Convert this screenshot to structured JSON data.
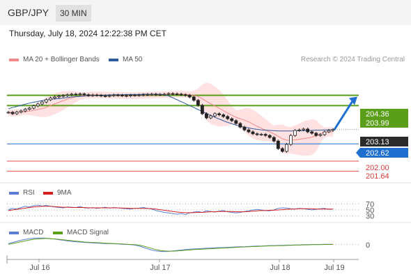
{
  "header": {
    "pair": "GBP/JPY",
    "timeframe": "30 MIN",
    "datetime": "Thursday, July 18, 2024 12:22:38 PM CET"
  },
  "legend": {
    "bb_label": "MA 20 + Bollinger Bands",
    "ma50_label": "MA 50",
    "credit": "Research © 2024 Trading Central"
  },
  "rsi_legend": {
    "rsi": "RSI",
    "ma9": "9MA"
  },
  "macd_legend": {
    "macd": "MACD",
    "signal": "MACD Signal"
  },
  "colors": {
    "up": "#5b9bd5",
    "green": "#5a9e1a",
    "red": "#e84c4c",
    "blue": "#1f6fd1",
    "dark": "#2b2b2b",
    "ma50": "#2e5b9e",
    "ma20": "#f08a8a",
    "bands": "#ffdcdc"
  },
  "chart_data": [
    {
      "type": "candlestick",
      "panel": "price",
      "x_labels": [
        "Jul 16",
        "Jul 17",
        "Jul 18",
        "Jul 19"
      ],
      "ylim": [
        201.4,
        205.4
      ],
      "levels": [
        {
          "label": "204.36",
          "value": 204.36,
          "color": "green"
        },
        {
          "label": "203.99",
          "value": 203.99,
          "color": "green"
        },
        {
          "label": "203.13",
          "value": 203.13,
          "color": "dark"
        },
        {
          "label": "202.62",
          "value": 202.62,
          "color": "blue"
        },
        {
          "label": "202.00",
          "value": 202.0,
          "color": "red"
        },
        {
          "label": "201.64",
          "value": 201.64,
          "color": "red"
        }
      ],
      "series_close": [
        203.75,
        203.7,
        203.76,
        203.8,
        203.86,
        203.9,
        203.98,
        204.05,
        204.12,
        204.2,
        204.26,
        204.3,
        204.33,
        204.35,
        204.38,
        204.4,
        204.39,
        204.41,
        204.38,
        204.35,
        204.37,
        204.36,
        204.34,
        204.33,
        204.35,
        204.37,
        204.36,
        204.35,
        204.34,
        204.36,
        204.36,
        204.37,
        204.38,
        204.39,
        204.4,
        204.38,
        204.39,
        204.4,
        204.42,
        204.41,
        204.4,
        204.38,
        204.36,
        204.3,
        204.18,
        204.0,
        203.7,
        203.55,
        203.62,
        203.7,
        203.66,
        203.6,
        203.52,
        203.45,
        203.35,
        203.22,
        203.12,
        203.05,
        202.98,
        202.95,
        202.96,
        202.92,
        202.85,
        202.72,
        202.45,
        202.35,
        202.6,
        202.92,
        203.1,
        203.12,
        203.15,
        203.05,
        203.0,
        202.92,
        202.95,
        203.05,
        203.1,
        203.13
      ],
      "ma50": [
        203.88,
        203.92,
        203.96,
        204.0,
        204.04,
        204.08,
        204.11,
        204.14,
        204.17,
        204.19,
        204.21,
        204.23,
        204.24,
        204.26,
        204.28,
        204.3,
        204.31,
        204.32,
        204.33,
        204.34,
        204.35,
        204.36,
        204.36,
        204.37,
        204.37,
        204.38,
        204.38,
        204.38,
        204.39,
        204.39,
        204.39,
        204.39,
        204.4,
        204.4,
        204.4,
        204.4,
        204.4,
        204.38,
        204.34,
        204.27,
        204.2,
        204.13,
        204.06,
        203.99,
        203.92,
        203.85,
        203.78,
        203.71,
        203.64,
        203.57,
        203.51,
        203.45,
        203.39,
        203.34,
        203.29,
        203.25,
        203.22,
        203.19,
        203.16,
        203.14,
        203.12,
        203.11,
        203.1,
        203.09,
        203.08,
        203.08,
        203.08,
        203.08,
        203.08,
        203.09,
        203.09,
        203.1,
        203.1,
        203.11,
        203.11,
        203.12,
        203.12,
        203.13
      ]
    },
    {
      "type": "line",
      "panel": "rsi",
      "ylim": [
        20,
        80
      ],
      "levels": [
        {
          "label": "70",
          "value": 70
        },
        {
          "label": "50",
          "value": 50
        },
        {
          "label": "30",
          "value": 30
        }
      ],
      "series": [
        {
          "name": "RSI",
          "values": [
            50,
            55,
            53,
            58,
            62,
            60,
            64,
            66,
            63,
            65,
            62,
            60,
            58,
            57,
            60,
            59,
            58,
            61,
            57,
            56,
            58,
            55,
            57,
            59,
            56,
            58,
            57,
            55,
            54,
            53,
            55,
            56,
            58,
            55,
            53,
            48,
            45,
            42,
            40,
            38,
            36,
            38,
            35,
            40,
            43,
            45,
            42,
            47,
            45,
            43,
            46,
            48,
            44,
            42,
            40,
            42,
            45,
            47,
            50,
            52,
            50,
            48,
            47,
            50,
            55,
            57,
            56,
            54,
            53,
            55,
            54,
            52,
            50,
            52,
            54,
            55,
            52,
            53
          ]
        },
        {
          "name": "9MA",
          "values": [
            48,
            50,
            52,
            54,
            56,
            58,
            60,
            61,
            62,
            62,
            62,
            61,
            60,
            59,
            59,
            58,
            58,
            58,
            58,
            57,
            57,
            57,
            57,
            57,
            57,
            57,
            57,
            56,
            56,
            55,
            55,
            55,
            55,
            55,
            54,
            53,
            51,
            49,
            47,
            45,
            43,
            42,
            41,
            41,
            41,
            42,
            42,
            43,
            44,
            44,
            45,
            45,
            45,
            45,
            44,
            44,
            44,
            45,
            46,
            47,
            48,
            48,
            49,
            49,
            50,
            51,
            52,
            53,
            53,
            54,
            54,
            54,
            54,
            53,
            53,
            53,
            53,
            53
          ]
        }
      ]
    },
    {
      "type": "line",
      "panel": "macd",
      "ylim": [
        -0.6,
        0.4
      ],
      "levels": [
        {
          "label": "0",
          "value": 0
        }
      ],
      "series": [
        {
          "name": "MACD",
          "values": [
            0.05,
            0.1,
            0.15,
            0.2,
            0.24,
            0.27,
            0.29,
            0.3,
            0.3,
            0.29,
            0.27,
            0.25,
            0.22,
            0.2,
            0.17,
            0.15,
            0.13,
            0.12,
            0.1,
            0.09,
            0.08,
            0.07,
            0.06,
            0.05,
            0.05,
            0.04,
            0.03,
            0.02,
            0.01,
            0.0,
            -0.02,
            -0.06,
            -0.12,
            -0.18,
            -0.24,
            -0.28,
            -0.3,
            -0.31,
            -0.3,
            -0.28,
            -0.26,
            -0.24,
            -0.22,
            -0.2,
            -0.19,
            -0.18,
            -0.17,
            -0.16,
            -0.15,
            -0.14,
            -0.13,
            -0.13,
            -0.12,
            -0.11,
            -0.1,
            -0.09,
            -0.09,
            -0.08,
            -0.07,
            -0.06,
            -0.06,
            -0.05,
            -0.04,
            -0.04,
            -0.03,
            -0.03,
            -0.02,
            -0.02,
            -0.01,
            -0.01,
            0.0,
            0.0,
            0.01,
            0.01,
            0.01,
            0.02,
            0.02,
            0.02
          ]
        },
        {
          "name": "MACD Signal",
          "values": [
            0.02,
            0.05,
            0.09,
            0.13,
            0.17,
            0.21,
            0.24,
            0.26,
            0.27,
            0.28,
            0.27,
            0.26,
            0.24,
            0.22,
            0.2,
            0.18,
            0.16,
            0.14,
            0.12,
            0.11,
            0.1,
            0.09,
            0.08,
            0.07,
            0.06,
            0.05,
            0.04,
            0.03,
            0.02,
            0.01,
            0.0,
            -0.02,
            -0.06,
            -0.11,
            -0.17,
            -0.22,
            -0.26,
            -0.28,
            -0.29,
            -0.29,
            -0.28,
            -0.27,
            -0.25,
            -0.24,
            -0.22,
            -0.21,
            -0.2,
            -0.19,
            -0.18,
            -0.17,
            -0.16,
            -0.15,
            -0.14,
            -0.13,
            -0.12,
            -0.11,
            -0.1,
            -0.09,
            -0.08,
            -0.08,
            -0.07,
            -0.06,
            -0.05,
            -0.05,
            -0.04,
            -0.04,
            -0.03,
            -0.03,
            -0.02,
            -0.02,
            -0.01,
            -0.01,
            0.0,
            0.0,
            0.0,
            0.01,
            0.01,
            0.01
          ]
        }
      ]
    }
  ]
}
